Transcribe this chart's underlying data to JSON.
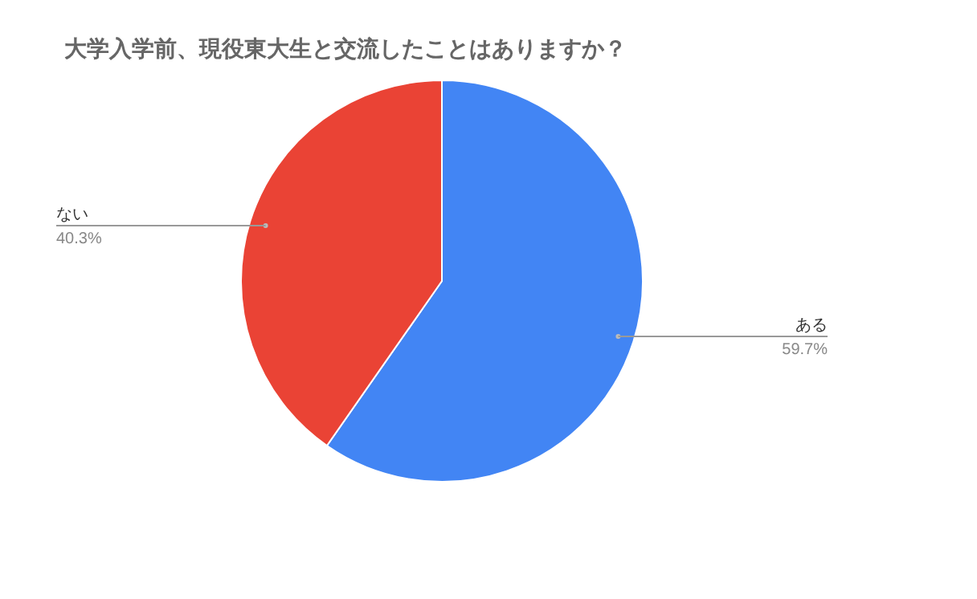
{
  "chart_data": {
    "type": "pie",
    "title": "大学入学前、現役東大生と交流したことはありますか？",
    "categories": [
      "ある",
      "ない"
    ],
    "values": [
      59.7,
      40.3
    ],
    "value_labels": [
      "59.7%",
      "40.3%"
    ],
    "colors": [
      "#4285f4",
      "#ea4335"
    ]
  }
}
